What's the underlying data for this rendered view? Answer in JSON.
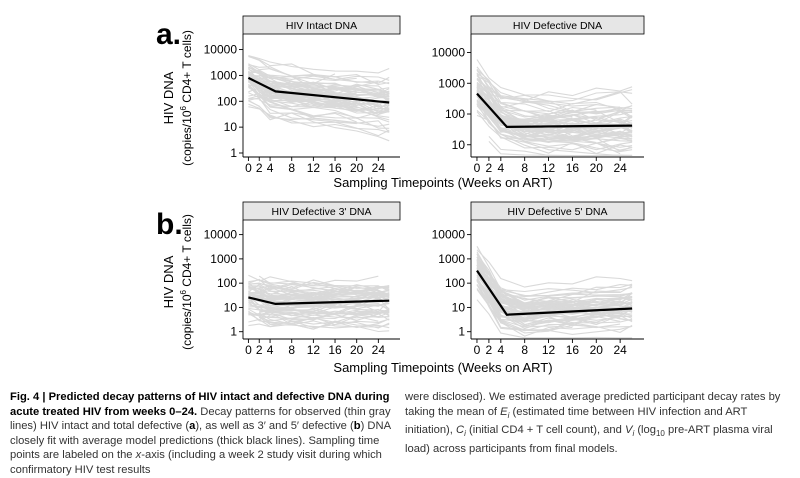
{
  "figure": {
    "shared_xlabel": "Sampling Timepoints (Weeks on ART)",
    "ylabel_line1": "HIV DNA",
    "ylabel_line2_pre": "(copies/10",
    "ylabel_line2_sup": "6",
    "ylabel_line2_post": " CD4+ T cells)",
    "row_labels": [
      "a.",
      "b."
    ]
  },
  "chart_data": [
    {
      "type": "line",
      "title": "HIV Intact DNA",
      "panel": "a",
      "xlabel": "Sampling Timepoints (Weeks on ART)",
      "ylabel": "HIV DNA (copies/10^6 CD4+ T cells)",
      "yscale": "log10",
      "ylim": [
        0.7,
        40000
      ],
      "xlim": [
        -1,
        28
      ],
      "xticks": [
        0,
        2,
        4,
        8,
        12,
        16,
        20,
        24
      ],
      "yticks": [
        1,
        10,
        100,
        1000,
        10000
      ],
      "ytick_labels": [
        "1",
        "10",
        "100",
        "1000",
        "10000"
      ],
      "series": [
        {
          "name": "Average model prediction",
          "x": [
            0,
            5,
            26
          ],
          "values": [
            800,
            240,
            90
          ],
          "color": "#000000"
        }
      ],
      "observed_individual_lines": "thin gray lines"
    },
    {
      "type": "line",
      "title": "HIV Defective DNA",
      "panel": "a",
      "xlabel": "Sampling Timepoints (Weeks on ART)",
      "ylabel": "",
      "yscale": "log10",
      "ylim": [
        4,
        40000
      ],
      "xlim": [
        -1,
        28
      ],
      "xticks": [
        0,
        2,
        4,
        8,
        12,
        16,
        20,
        24
      ],
      "yticks": [
        10,
        100,
        1000,
        10000
      ],
      "ytick_labels": [
        "10",
        "100",
        "1000",
        "10000"
      ],
      "series": [
        {
          "name": "Average model prediction",
          "x": [
            0,
            5,
            26
          ],
          "values": [
            460,
            38,
            42
          ],
          "color": "#000000"
        }
      ],
      "observed_individual_lines": "thin gray lines"
    },
    {
      "type": "line",
      "title": "HIV Defective 3' DNA",
      "panel": "b",
      "xlabel": "Sampling Timepoints (Weeks on ART)",
      "ylabel": "HIV DNA (copies/10^6 CD4+ T cells)",
      "yscale": "log10",
      "ylim": [
        0.5,
        40000
      ],
      "xlim": [
        -1,
        28
      ],
      "xticks": [
        0,
        2,
        4,
        8,
        12,
        16,
        20,
        24
      ],
      "yticks": [
        1,
        10,
        100,
        1000,
        10000
      ],
      "ytick_labels": [
        "1",
        "10",
        "100",
        "1000",
        "10000"
      ],
      "series": [
        {
          "name": "Average model prediction",
          "x": [
            0,
            5,
            26
          ],
          "values": [
            26,
            14,
            19
          ],
          "color": "#000000"
        }
      ],
      "observed_individual_lines": "thin gray lines"
    },
    {
      "type": "line",
      "title": "HIV Defective 5' DNA",
      "panel": "b",
      "xlabel": "Sampling Timepoints (Weeks on ART)",
      "ylabel": "",
      "yscale": "log10",
      "ylim": [
        0.5,
        40000
      ],
      "xlim": [
        -1,
        28
      ],
      "xticks": [
        0,
        2,
        4,
        8,
        12,
        16,
        20,
        24
      ],
      "yticks": [
        1,
        10,
        100,
        1000,
        10000
      ],
      "ytick_labels": [
        "1",
        "10",
        "100",
        "1000",
        "10000"
      ],
      "series": [
        {
          "name": "Average model prediction",
          "x": [
            0,
            5,
            26
          ],
          "values": [
            330,
            5,
            9
          ],
          "color": "#000000"
        }
      ],
      "observed_individual_lines": "thin gray lines"
    }
  ],
  "caption": {
    "fig_label": "Fig. 4",
    "separator": " | ",
    "title": "Predicted decay patterns of HIV intact and defective DNA during acute treated HIV from weeks 0–24.",
    "seg1": " Decay patterns for observed (thin gray lines) HIV intact and total defective (",
    "a": "a",
    "seg2": "), as well as 3′ and 5′ defective (",
    "b": "b",
    "seg3": ") DNA closely fit with average model predictions (thick black lines). Sampling time points are labeled on the ",
    "xaxis": "x",
    "seg4": "-axis (including a week 2 study visit during which confirmatory HIV test results were disclosed). We estimated average predicted participant decay rates by taking the mean of ",
    "E": "E",
    "Esub": "i",
    "seg5": " (estimated time between HIV infection and ART initiation), ",
    "C": "C",
    "Csub": "i",
    "seg6": " (initial CD4 + T cell count), and ",
    "V": "V",
    "Vsub": "i",
    "seg7": " (log",
    "log_sub": "10",
    "seg8": " pre-ART plasma viral load) across participants from final models."
  },
  "colors": {
    "observed": "#d9d9d9",
    "prediction": "#000000",
    "strip_fill": "#e6e6e6",
    "axis": "#000000"
  }
}
